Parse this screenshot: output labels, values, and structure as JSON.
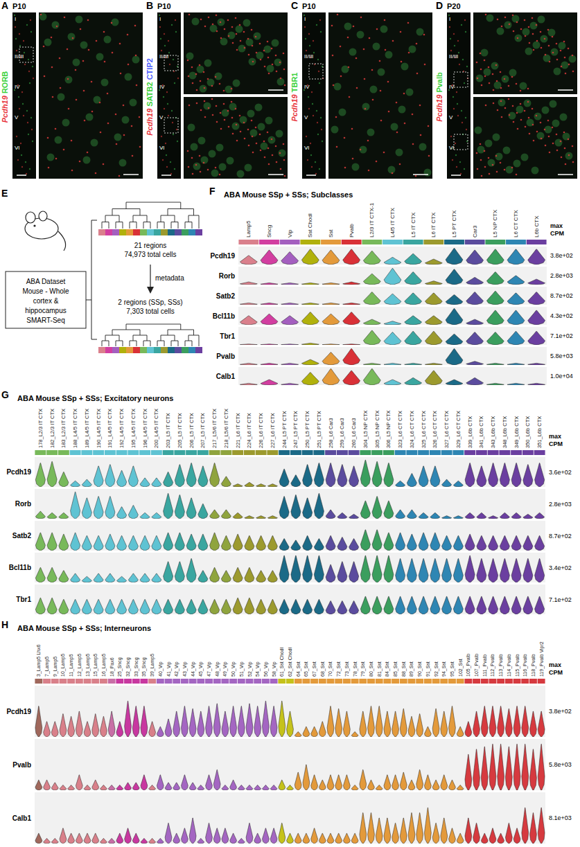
{
  "figure": {
    "image_panels": [
      {
        "panel_label": "A",
        "age": "P10",
        "markers": [
          {
            "name": "Pcdh19",
            "color": "#e8323a"
          },
          {
            "name": "RORB",
            "color": "#3bd13b"
          }
        ],
        "layers": [
          "I",
          "II/III",
          "IV",
          "V",
          "VI"
        ],
        "insets": 1
      },
      {
        "panel_label": "B",
        "age": "P10",
        "markers": [
          {
            "name": "Pcdh19",
            "color": "#e8323a"
          },
          {
            "name": "SATB2",
            "color": "#3bd13b"
          },
          {
            "name": "CTIP2",
            "color": "#4a5cff"
          }
        ],
        "layers": [
          "I",
          "II/III",
          "IV",
          "V",
          "VI"
        ],
        "insets": 2
      },
      {
        "panel_label": "C",
        "age": "P10",
        "markers": [
          {
            "name": "Pcdh19",
            "color": "#e8323a"
          },
          {
            "name": "TBR1",
            "color": "#3bd13b"
          }
        ],
        "layers": [
          "I",
          "II/III",
          "IV",
          "V",
          "VI"
        ],
        "insets": 1
      },
      {
        "panel_label": "D",
        "age": "P20",
        "markers": [
          {
            "name": "Pcdh19",
            "color": "#e8323a"
          },
          {
            "name": "Pvalb",
            "color": "#3bd13b"
          }
        ],
        "layers": [
          "I",
          "II/III",
          "IV",
          "V",
          "VI"
        ],
        "insets": 2
      }
    ],
    "diagram": {
      "panel_label": "E",
      "box": [
        "ABA Dataset",
        "Mouse - Whole",
        "cortex &",
        "hippocampus",
        "SMART-Seq"
      ],
      "top_text": [
        "21 regions",
        "74,973 total cells"
      ],
      "arrow_label": "metadata",
      "bottom_text": [
        "2 regions (SSp, SSs)",
        "7,303 total cells"
      ]
    }
  },
  "chart_data": [
    {
      "type": "violin",
      "panel_label": "F",
      "title": "ABA Mouse SSp + SSs; Subclasses",
      "max_header": "max CPM",
      "tick_labels": "x",
      "ylim": [
        0,
        1
      ],
      "categories": [
        "Lamp5",
        "Sncg",
        "Vip",
        "Sst Chodl",
        "Sst",
        "Pvalb",
        "L2/3 IT CTX-1",
        "L4/5 IT CTX",
        "L5 IT CTX",
        "L6 IT CTX",
        "L5 PT CTX",
        "Car3",
        "L5 NP CTX",
        "L6 CT CTX",
        "L6b CTX"
      ],
      "colors": [
        "#da808c",
        "#d23ea0",
        "#a45fbf",
        "#b1b10c",
        "#e39a3b",
        "#d93137",
        "#78b95a",
        "#5fc3d3",
        "#3aa6a0",
        "#9c9a2e",
        "#1b6a87",
        "#5b4c9e",
        "#3b9e5e",
        "#2e86b3",
        "#6b3fa0"
      ],
      "series": [
        {
          "name": "Pcdh19",
          "max": {
            "value": 380,
            "label": "3.8e+02"
          },
          "values": [
            0.5,
            0.8,
            0.7,
            0.85,
            0.8,
            0.85,
            0.75,
            0.4,
            0.6,
            0.3,
            0.9,
            0.8,
            0.85,
            0.85,
            0.85
          ]
        },
        {
          "name": "Rorb",
          "max": {
            "value": 2800,
            "label": "2.8e+03"
          },
          "values": [
            0.15,
            0.1,
            0.1,
            0.1,
            0.1,
            0.15,
            0.6,
            0.9,
            0.7,
            0.2,
            0.85,
            0.4,
            0.7,
            0.5,
            0.3
          ]
        },
        {
          "name": "Satb2",
          "max": {
            "value": 870,
            "label": "8.7e+02"
          },
          "values": [
            0.1,
            0.1,
            0.1,
            0.1,
            0.1,
            0.1,
            0.7,
            0.6,
            0.65,
            0.65,
            0.55,
            0.7,
            0.75,
            0.65,
            0.7
          ]
        },
        {
          "name": "Bcl11b",
          "max": {
            "value": 430,
            "label": "4.3e+02"
          },
          "values": [
            0.5,
            0.6,
            0.5,
            0.7,
            0.6,
            0.7,
            0.3,
            0.2,
            0.5,
            0.5,
            0.9,
            0.3,
            0.8,
            0.8,
            0.8
          ]
        },
        {
          "name": "Tbr1",
          "max": {
            "value": 710,
            "label": "7.1e+02"
          },
          "values": [
            0.05,
            0.05,
            0.05,
            0.1,
            0.05,
            0.05,
            0.8,
            0.7,
            0.75,
            0.75,
            0.6,
            0.7,
            0.7,
            0.75,
            0.75
          ]
        },
        {
          "name": "Pvalb",
          "max": {
            "value": 5800,
            "label": "5.8e+03"
          },
          "values": [
            0.1,
            0.1,
            0.1,
            0.3,
            0.7,
            0.9,
            0.1,
            0.1,
            0.1,
            0.1,
            0.9,
            0.2,
            0.1,
            0.1,
            0.1
          ]
        },
        {
          "name": "Calb1",
          "max": {
            "value": 10000,
            "label": "1.0e+04"
          },
          "values": [
            0.1,
            0.3,
            0.1,
            0.7,
            0.9,
            0.8,
            0.9,
            0.3,
            0.4,
            0.8,
            0.3,
            0.4,
            0.1,
            0.1,
            0.1
          ]
        }
      ]
    },
    {
      "type": "violin",
      "panel_label": "G",
      "title": "ABA Mouse SSp + SSs; Excitatory neurons",
      "max_header": "max CPM",
      "tick_labels": "x",
      "ylim": [
        0,
        1
      ],
      "categories": [
        "178_L2/3 IT CTX",
        "182_L2/3 IT CTX",
        "183_L2/3 IT CTX",
        "188_L4/5 IT CTX",
        "189_L4/5 IT CTX",
        "190_L4/5 IT CTX",
        "191_L4/5 IT CTX",
        "192_L4/5 IT CTX",
        "195_L4/5 IT CTX",
        "196_L4/5 IT CTX",
        "200_L4/5 IT CTX",
        "203_L5 IT CTX",
        "205_L5 IT CTX",
        "206_L5 IT CTX",
        "207_L5 IT CTX",
        "217_L5/6 IT CTX",
        "218_L5/6 IT CTX",
        "221_L6 IT CTX",
        "224_L6 IT CTX",
        "226_L6 IT CTX",
        "227_L6 IT CTX",
        "244_L5 PT CTX",
        "247_L5 PT CTX",
        "250_L5 PT CTX",
        "251_L5 PT CTX",
        "258_L6 Car3",
        "259_L6 Car3",
        "260_L6 Car3",
        "304_L5 NP CTX",
        "305_L5 NP CTX",
        "306_L5 NP CTX",
        "323_L6 CT CTX",
        "324_L6 CT CTX",
        "325_L6 CT CTX",
        "326_L6 CT CTX",
        "327_L6 CT CTX",
        "329_L6 CT CTX",
        "339_L6b CTX",
        "341_L6b CTX",
        "343_L6b CTX",
        "348_L6b CTX",
        "349_L6b CTX",
        "350_L6b CTX",
        "351_L6b CTX"
      ],
      "colors": [
        "#78b95a",
        "#78b95a",
        "#78b95a",
        "#5fc3d3",
        "#5fc3d3",
        "#5fc3d3",
        "#5fc3d3",
        "#5fc3d3",
        "#5fc3d3",
        "#5fc3d3",
        "#5fc3d3",
        "#3aa6a0",
        "#3aa6a0",
        "#3aa6a0",
        "#3aa6a0",
        "#8fa43e",
        "#8fa43e",
        "#9c9a2e",
        "#9c9a2e",
        "#9c9a2e",
        "#9c9a2e",
        "#1b6a87",
        "#1b6a87",
        "#1b6a87",
        "#1b6a87",
        "#5b4c9e",
        "#5b4c9e",
        "#5b4c9e",
        "#3b9e5e",
        "#3b9e5e",
        "#3b9e5e",
        "#2e86b3",
        "#2e86b3",
        "#2e86b3",
        "#2e86b3",
        "#2e86b3",
        "#2e86b3",
        "#6b3fa0",
        "#6b3fa0",
        "#6b3fa0",
        "#6b3fa0",
        "#6b3fa0",
        "#6b3fa0",
        "#6b3fa0"
      ],
      "series": [
        {
          "name": "Pcdh19",
          "max": {
            "value": 360,
            "label": "3.6e+02"
          },
          "values": [
            0.8,
            0.85,
            0.5,
            0.2,
            0.25,
            0.7,
            0.75,
            0.55,
            0.7,
            0.3,
            0.3,
            0.5,
            0.75,
            0.8,
            0.7,
            0.8,
            0.35,
            0.1,
            0.15,
            0.1,
            0.1,
            0.6,
            0.4,
            0.75,
            0.8,
            0.8,
            0.75,
            0.7,
            0.9,
            0.85,
            0.8,
            0.2,
            0.45,
            0.7,
            0.7,
            0.25,
            0.2,
            0.8,
            0.7,
            0.8,
            0.8,
            0.8,
            0.75,
            0.8
          ]
        },
        {
          "name": "Rorb",
          "max": {
            "value": 2800,
            "label": "2.8e+03"
          },
          "values": [
            0.25,
            0.2,
            0.2,
            0.9,
            0.7,
            0.75,
            0.75,
            0.4,
            0.45,
            0.2,
            0.2,
            0.85,
            0.8,
            0.7,
            0.5,
            0.3,
            0.3,
            0.2,
            0.1,
            0.1,
            0.1,
            0.75,
            0.8,
            0.7,
            0.85,
            0.3,
            0.2,
            0.15,
            0.6,
            0.75,
            0.6,
            0.3,
            0.3,
            0.2,
            0.2,
            0.1,
            0.1,
            0.2,
            0.2,
            0.1,
            0.2,
            0.2,
            0.15,
            0.2
          ]
        },
        {
          "name": "Satb2",
          "max": {
            "value": 870,
            "label": "8.7e+02"
          },
          "values": [
            0.6,
            0.6,
            0.55,
            0.6,
            0.5,
            0.5,
            0.55,
            0.5,
            0.5,
            0.5,
            0.5,
            0.6,
            0.6,
            0.55,
            0.55,
            0.6,
            0.5,
            0.55,
            0.5,
            0.5,
            0.5,
            0.4,
            0.35,
            0.5,
            0.4,
            0.5,
            0.45,
            0.4,
            0.7,
            0.7,
            0.6,
            0.6,
            0.55,
            0.6,
            0.6,
            0.5,
            0.5,
            0.55,
            0.5,
            0.5,
            0.5,
            0.5,
            0.5,
            0.5
          ]
        },
        {
          "name": "Bcl11b",
          "max": {
            "value": 340,
            "label": "3.4e+02"
          },
          "values": [
            0.5,
            0.5,
            0.4,
            0.3,
            0.2,
            0.3,
            0.3,
            0.2,
            0.3,
            0.3,
            0.3,
            0.7,
            0.7,
            0.8,
            0.4,
            0.5,
            0.4,
            0.5,
            0.5,
            0.4,
            0.4,
            0.9,
            0.9,
            0.9,
            0.9,
            0.6,
            0.7,
            0.7,
            0.9,
            0.9,
            0.9,
            0.8,
            0.8,
            0.8,
            0.8,
            0.8,
            0.8,
            0.9,
            0.8,
            0.8,
            0.8,
            0.8,
            0.8,
            0.8
          ]
        },
        {
          "name": "Tbr1",
          "max": {
            "value": 710,
            "label": "7.1e+02"
          },
          "values": [
            0.55,
            0.55,
            0.5,
            0.5,
            0.5,
            0.5,
            0.5,
            0.5,
            0.5,
            0.5,
            0.5,
            0.5,
            0.5,
            0.5,
            0.5,
            0.5,
            0.5,
            0.55,
            0.55,
            0.5,
            0.5,
            0.5,
            0.5,
            0.5,
            0.5,
            0.45,
            0.45,
            0.45,
            0.6,
            0.6,
            0.6,
            0.6,
            0.6,
            0.6,
            0.6,
            0.6,
            0.6,
            0.6,
            0.6,
            0.6,
            0.6,
            0.6,
            0.6,
            0.6
          ]
        }
      ]
    },
    {
      "type": "violin",
      "panel_label": "H",
      "title": "ABA Mouse SSp + SSs; Interneurons",
      "max_header": "max CPM",
      "tick_labels": "x",
      "ylim": [
        0,
        1
      ],
      "categories": [
        "3_Lamp5 Lhx6",
        "7_Lamp5",
        "9_Lamp5",
        "10_Lamp5",
        "11_Lamp5",
        "12_Lamp5",
        "13_Lamp5",
        "15_Lamp5",
        "16_Lamp5",
        "18_Pax6",
        "25_Sncg",
        "32_Sncg",
        "33_Sncg",
        "35_Sncg",
        "39_Lamp5",
        "40_Vip",
        "41_Vip",
        "42_Vip",
        "43_Vip",
        "44_Vip",
        "45_Vip",
        "47_Vip",
        "48_Vip",
        "49_Vip",
        "50_Vip",
        "51_Vip",
        "52_Vip",
        "54_Vip",
        "56_Vip",
        "58_Vip",
        "61_Sst Chodl",
        "62_Sst Chodl",
        "64_Sst",
        "65_Sst",
        "67_Sst",
        "68_Sst",
        "70_Sst",
        "72_Sst",
        "73_Sst",
        "78_Sst",
        "79_Sst",
        "80_Sst",
        "81_Sst",
        "84_Sst",
        "85_Sst",
        "88_Sst",
        "89_Sst",
        "90_Sst",
        "91_Sst",
        "92_Sst",
        "94_Sst",
        "95_Sst",
        "102_Sst",
        "105_Pvalb",
        "107_Pvalb",
        "111_Pvalb",
        "112_Pvalb",
        "113_Pvalb",
        "114_Pvalb",
        "115_Pvalb",
        "116_Pvalb",
        "118_Pvalb",
        "119_Pvalb Vipr2"
      ],
      "colors": [
        "#a0685c",
        "#d9808a",
        "#d9808a",
        "#d9808a",
        "#d9808a",
        "#d9808a",
        "#d9808a",
        "#d9808a",
        "#d9808a",
        "#c86fa6",
        "#c838a0",
        "#c838a0",
        "#c838a0",
        "#c838a0",
        "#d9808a",
        "#a466c2",
        "#a466c2",
        "#a466c2",
        "#a466c2",
        "#a466c2",
        "#a466c2",
        "#a466c2",
        "#a466c2",
        "#a466c2",
        "#a466c2",
        "#a466c2",
        "#a466c2",
        "#a466c2",
        "#a466c2",
        "#a466c2",
        "#c5c21b",
        "#c5c21b",
        "#e39a3b",
        "#e39a3b",
        "#e39a3b",
        "#e39a3b",
        "#e39a3b",
        "#e39a3b",
        "#e39a3b",
        "#e39a3b",
        "#e39a3b",
        "#e39a3b",
        "#e39a3b",
        "#e39a3b",
        "#e39a3b",
        "#e39a3b",
        "#e39a3b",
        "#e39a3b",
        "#e39a3b",
        "#e39a3b",
        "#e39a3b",
        "#e39a3b",
        "#e39a3b",
        "#d63a3f",
        "#d63a3f",
        "#d63a3f",
        "#d63a3f",
        "#d63a3f",
        "#d63a3f",
        "#d63a3f",
        "#d63a3f",
        "#d63a3f",
        "#d63a3f"
      ],
      "series": [
        {
          "name": "Pcdh19",
          "max": {
            "value": 380,
            "label": "3.8e+02"
          },
          "values": [
            0.6,
            0.3,
            0.3,
            0.45,
            0.4,
            0.5,
            0.3,
            0.45,
            0.4,
            0.5,
            0.3,
            0.7,
            0.6,
            0.6,
            0.3,
            0.2,
            0.35,
            0.5,
            0.6,
            0.55,
            0.5,
            0.6,
            0.65,
            0.5,
            0.6,
            0.6,
            0.65,
            0.6,
            0.7,
            0.6,
            0.7,
            0.5,
            0.1,
            0.2,
            0.2,
            0.3,
            0.6,
            0.55,
            0.5,
            0.1,
            0.5,
            0.6,
            0.6,
            0.5,
            0.5,
            0.55,
            0.4,
            0.45,
            0.2,
            0.55,
            0.5,
            0.6,
            0.2,
            0.3,
            0.5,
            0.6,
            0.6,
            0.6,
            0.55,
            0.6,
            0.6,
            0.5,
            0.5
          ]
        },
        {
          "name": "Pvalb",
          "max": {
            "value": 5800,
            "label": "5.8e+03"
          },
          "values": [
            0.2,
            0.2,
            0.15,
            0.1,
            0.1,
            0.3,
            0.1,
            0.2,
            0.1,
            0.1,
            0.1,
            0.15,
            0.15,
            0.3,
            0.1,
            0.3,
            0.15,
            0.15,
            0.3,
            0.15,
            0.1,
            0.3,
            0.4,
            0.1,
            0.2,
            0.1,
            0.1,
            0.1,
            0.1,
            0.1,
            0.2,
            0.1,
            0.35,
            0.5,
            0.3,
            0.2,
            0.3,
            0.3,
            0.3,
            0.1,
            0.4,
            0.2,
            0.1,
            0.3,
            0.3,
            0.35,
            0.2,
            0.4,
            0.3,
            0.2,
            0.3,
            0.2,
            0.1,
            0.7,
            0.8,
            0.85,
            0.9,
            0.9,
            0.85,
            0.9,
            0.9,
            0.8,
            0.9
          ]
        },
        {
          "name": "Calb1",
          "max": {
            "value": 8100,
            "label": "8.1e+03"
          },
          "values": [
            0.2,
            0.1,
            0.1,
            0.3,
            0.2,
            0.2,
            0.2,
            0.2,
            0.1,
            0.1,
            0.2,
            0.3,
            0.2,
            0.1,
            0.1,
            0.1,
            0.4,
            0.2,
            0.3,
            0.5,
            0.1,
            0.4,
            0.3,
            0.3,
            0.2,
            0.1,
            0.4,
            0.2,
            0.3,
            0.3,
            0.4,
            0.2,
            0.2,
            0.2,
            0.3,
            0.2,
            0.2,
            0.2,
            0.2,
            0.2,
            0.6,
            0.6,
            0.5,
            0.5,
            0.4,
            0.5,
            0.6,
            0.6,
            0.7,
            0.4,
            0.5,
            0.3,
            0.2,
            0.5,
            0.4,
            0.2,
            0.3,
            0.2,
            0.4,
            0.3,
            0.7,
            0.6,
            0.7
          ]
        }
      ]
    }
  ]
}
